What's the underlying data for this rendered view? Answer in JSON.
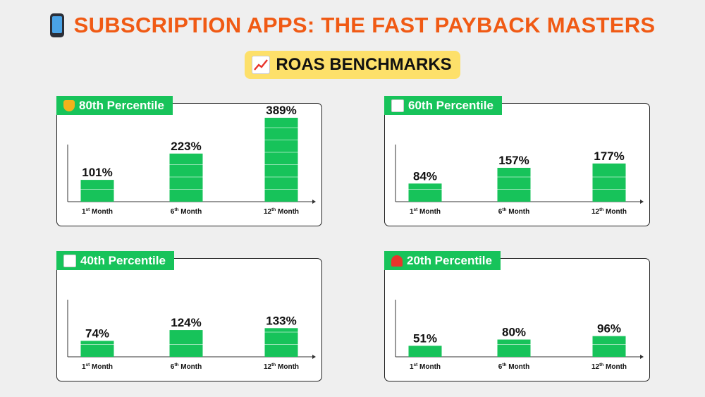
{
  "header": {
    "title": "SUBSCRIPTION APPS: THE FAST PAYBACK MASTERS",
    "title_icon": "mobile-phone-icon",
    "subtitle": "ROAS BENCHMARKS",
    "subtitle_icon": "chart-increasing-icon",
    "title_color": "#f05a14",
    "subtitle_bg": "#fde06a"
  },
  "colors": {
    "bar": "#17c35a",
    "badge": "#17c35a"
  },
  "chart_data": [
    {
      "type": "bar",
      "title": "80th Percentile",
      "icon": "trophy-icon",
      "categories": [
        "1st Month",
        "6th Month",
        "12th Month"
      ],
      "values": [
        101,
        223,
        389
      ],
      "labels": [
        "101%",
        "223%",
        "389%"
      ]
    },
    {
      "type": "bar",
      "title": "60th Percentile",
      "icon": "bar-chart-icon",
      "categories": [
        "1st Month",
        "6th Month",
        "12th Month"
      ],
      "values": [
        84,
        157,
        177
      ],
      "labels": [
        "84%",
        "157%",
        "177%"
      ]
    },
    {
      "type": "bar",
      "title": "40th Percentile",
      "icon": "chart-decreasing-icon",
      "categories": [
        "1st Month",
        "6th Month",
        "12th Month"
      ],
      "values": [
        74,
        124,
        133
      ],
      "labels": [
        "74%",
        "124%",
        "133%"
      ]
    },
    {
      "type": "bar",
      "title": "20th Percentile",
      "icon": "siren-icon",
      "categories": [
        "1st Month",
        "6th Month",
        "12th Month"
      ],
      "values": [
        51,
        80,
        96
      ],
      "labels": [
        "51%",
        "80%",
        "96%"
      ]
    }
  ]
}
